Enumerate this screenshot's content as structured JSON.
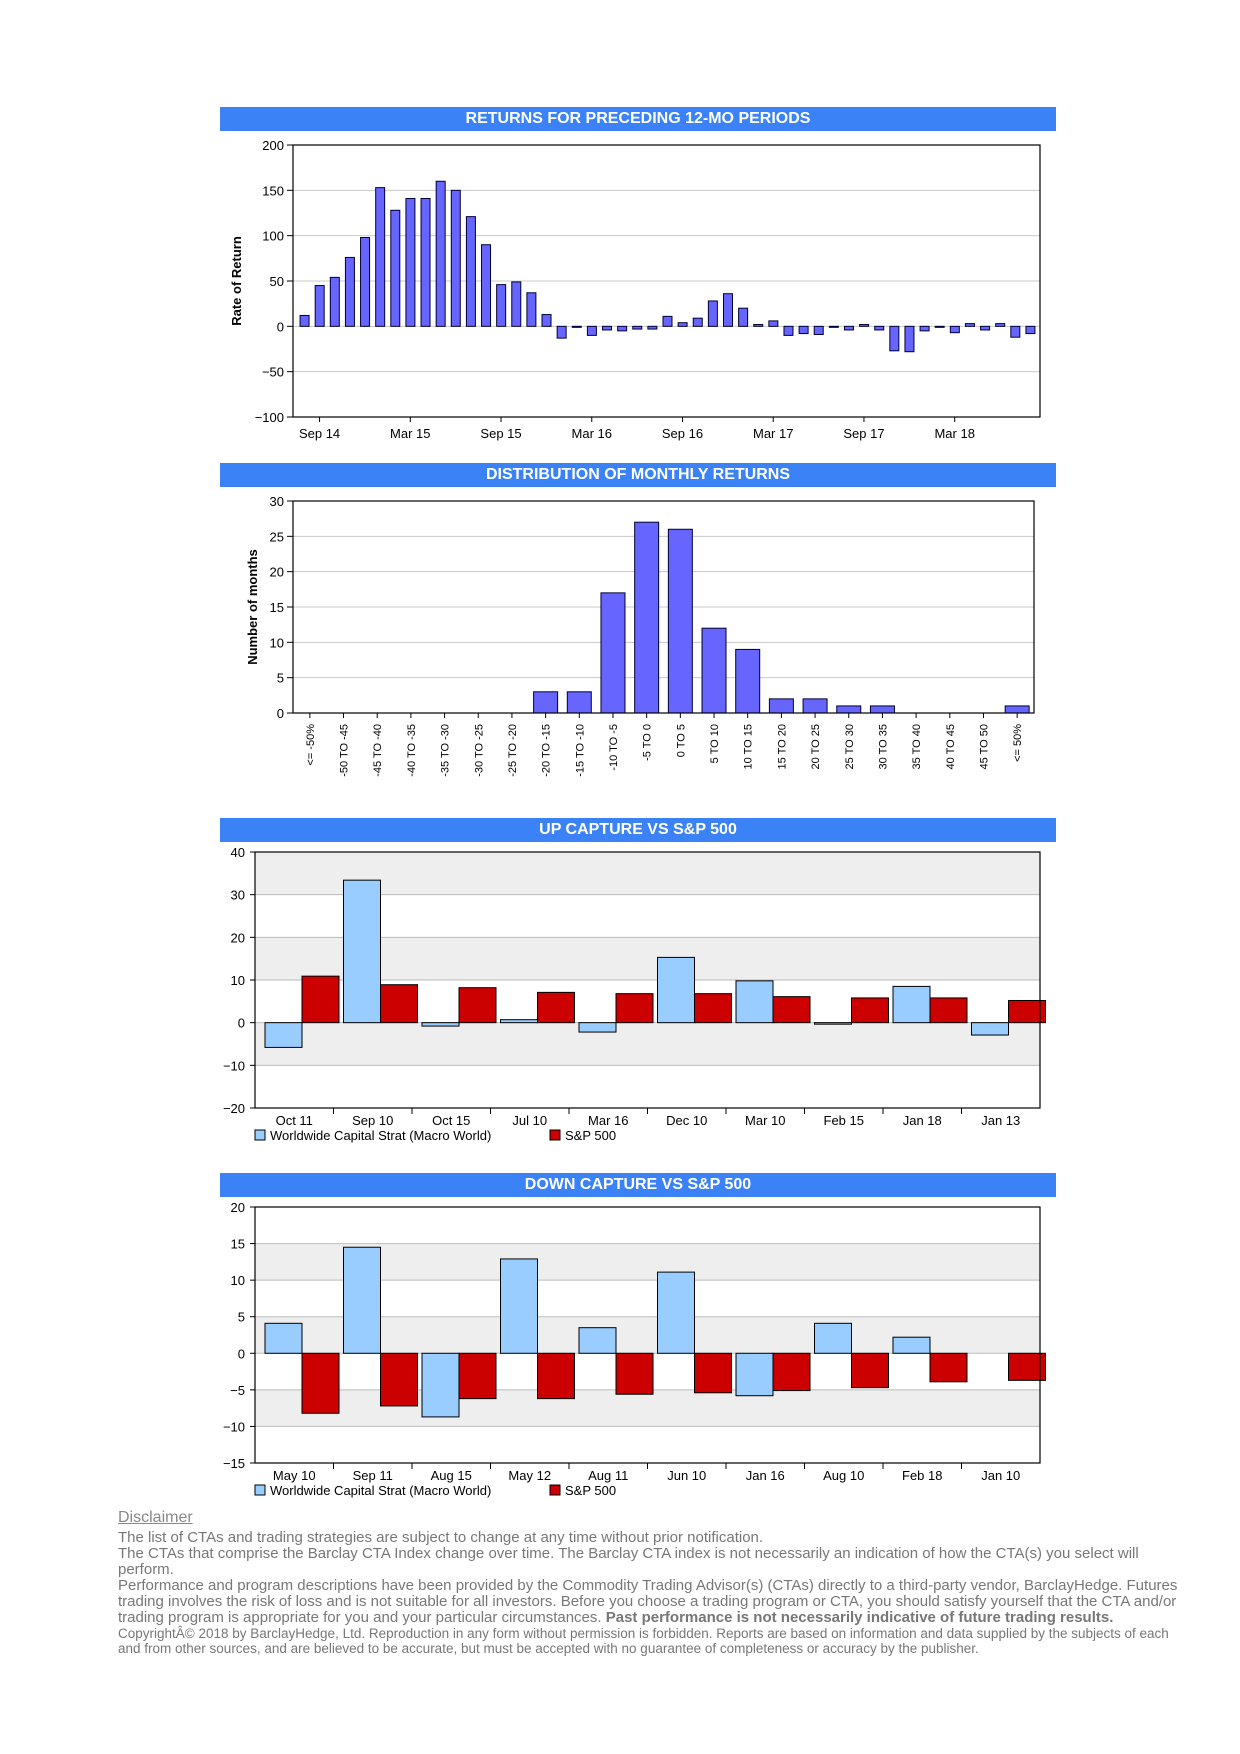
{
  "charts": [
    {
      "id": "returns12",
      "type": "bar",
      "title": "RETURNS FOR PRECEDING 12-MO PERIODS",
      "ylabel": "Rate of Return",
      "ylim": [
        -100,
        200
      ],
      "yticks": [
        -100,
        -50,
        0,
        50,
        100,
        150,
        200
      ],
      "xlabels": [
        "Sep 14",
        "Mar 15",
        "Sep 15",
        "Mar 16",
        "Sep 16",
        "Mar 17",
        "Sep 17",
        "Mar 18"
      ],
      "values": [
        12,
        45,
        54,
        76,
        98,
        153,
        128,
        141,
        141,
        160,
        150,
        121,
        90,
        46,
        49,
        37,
        13,
        -13,
        -1,
        -10,
        -4,
        -5,
        -3,
        -3,
        11,
        4,
        9,
        28,
        36,
        20,
        2,
        6,
        -10,
        -8,
        -9,
        -1,
        -4,
        2,
        -4,
        -27,
        -28,
        -5,
        -1,
        -7,
        3,
        -4,
        3,
        -12,
        -8
      ]
    },
    {
      "id": "distribution",
      "type": "bar",
      "title": "DISTRIBUTION OF MONTHLY RETURNS",
      "ylabel": "Number of months",
      "ylim": [
        0,
        30
      ],
      "yticks": [
        0,
        5,
        10,
        15,
        20,
        25,
        30
      ],
      "categories": [
        "<= -50%",
        "-50 TO -45",
        "-45 TO -40",
        "-40 TO -35",
        "-35 TO -30",
        "-30 TO -25",
        "-25 TO -20",
        "-20 TO -15",
        "-15 TO -10",
        "-10 TO -5",
        "-5 TO 0",
        "0 TO 5",
        "5 TO 10",
        "10 TO 15",
        "15 TO 20",
        "20 TO 25",
        "25 TO 30",
        "30 TO 35",
        "35 TO 40",
        "40 TO 45",
        "45 TO 50",
        "<= 50%"
      ],
      "values": [
        0,
        0,
        0,
        0,
        0,
        0,
        0,
        3,
        3,
        17,
        27,
        26,
        12,
        9,
        2,
        2,
        1,
        1,
        0,
        0,
        0,
        1
      ]
    },
    {
      "id": "upcapture",
      "type": "bar",
      "title": "UP CAPTURE VS S&P 500",
      "ylim": [
        -20,
        40
      ],
      "yticks": [
        -20,
        -10,
        0,
        10,
        20,
        30,
        40
      ],
      "categories": [
        "Oct 11",
        "Sep 10",
        "Oct 15",
        "Jul 10",
        "Mar 16",
        "Dec 10",
        "Mar 10",
        "Feb 15",
        "Jan 18",
        "Jan 13"
      ],
      "series": [
        {
          "name": "Worldwide Capital Strat (Macro World)",
          "color": "#99ccff",
          "values": [
            -5.8,
            33.4,
            -0.8,
            0.7,
            -2.2,
            15.3,
            9.8,
            -0.3,
            8.5,
            -2.9
          ]
        },
        {
          "name": "S&P 500",
          "color": "#cc0000",
          "values": [
            10.9,
            8.9,
            8.2,
            7.1,
            6.8,
            6.8,
            6.1,
            5.8,
            5.8,
            5.2
          ]
        }
      ]
    },
    {
      "id": "downcapture",
      "type": "bar",
      "title": "DOWN CAPTURE VS S&P 500",
      "ylim": [
        -15,
        20
      ],
      "yticks": [
        -15,
        -10,
        -5,
        0,
        5,
        10,
        15,
        20
      ],
      "categories": [
        "May 10",
        "Sep 11",
        "Aug 15",
        "May 12",
        "Aug 11",
        "Jun 10",
        "Jan 16",
        "Aug 10",
        "Feb 18",
        "Jan 10"
      ],
      "series": [
        {
          "name": "Worldwide Capital Strat (Macro World)",
          "color": "#99ccff",
          "values": [
            4.1,
            14.5,
            -8.7,
            12.9,
            3.5,
            11.1,
            -5.8,
            4.1,
            2.2,
            0
          ]
        },
        {
          "name": "S&P 500",
          "color": "#cc0000",
          "values": [
            -8.2,
            -7.2,
            -6.2,
            -6.2,
            -5.6,
            -5.4,
            -5.1,
            -4.7,
            -3.9,
            -3.7
          ]
        }
      ]
    }
  ],
  "disclaimer": {
    "title": "Disclaimer",
    "lines": [
      "The list of CTAs and trading strategies are subject to change at any time without prior notification.",
      "The CTAs that comprise the Barclay CTA Index change over time.  The Barclay CTA index is not necessarily an indication of how the CTA(s) you select will perform.",
      "Performance and program descriptions have been provided by the Commodity Trading Advisor(s) (CTAs) directly to a third-party vendor, BarclayHedge. Futures trading involves the risk of loss and is not suitable for all investors.  Before you choose a trading program or CTA, you should satisfy yourself that the CTA and/or trading program is appropriate for you and your particular circumstances."
    ],
    "bold": "Past performance is not necessarily indicative of future trading results.",
    "copyright": "CopyrightÂ© 2018 by BarclayHedge, Ltd. Reproduction in any form without permission is forbidden. Reports are based on information and data supplied by the subjects of each and from other sources, and are believed to be accurate, but must be accepted with no guarantee of completeness or accuracy by the publisher."
  }
}
